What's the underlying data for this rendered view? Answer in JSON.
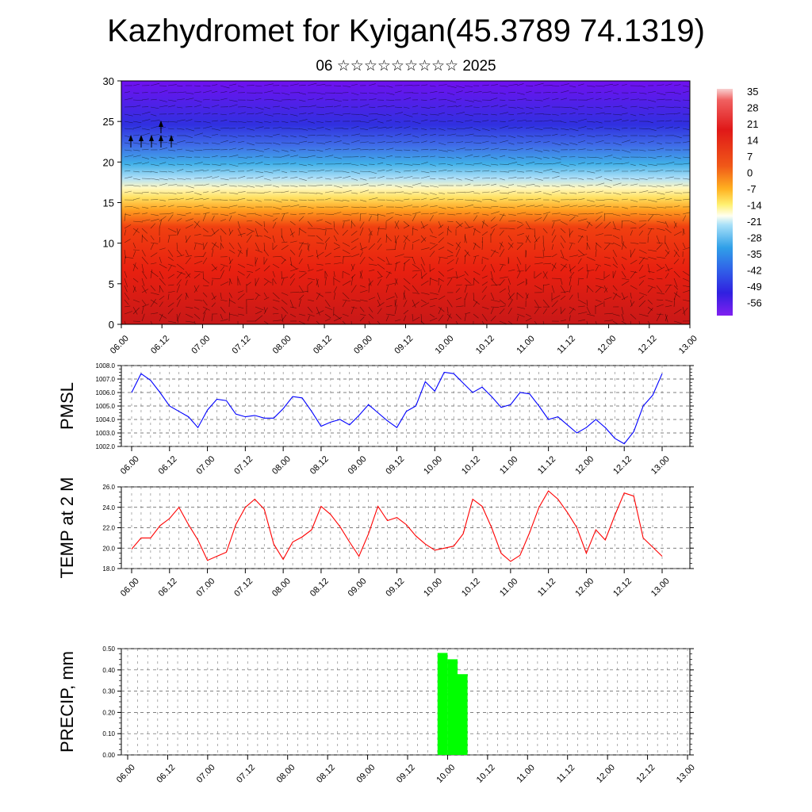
{
  "title": "Kazhydromet for Kyigan(45.3789 74.1319)",
  "subtitle": "06 ☆☆☆☆☆☆☆☆☆ 2025",
  "x_tick_labels": [
    "06.00",
    "06.12",
    "07.00",
    "07.12",
    "08.00",
    "08.12",
    "09.00",
    "09.12",
    "10.00",
    "10.12",
    "11.00",
    "11.12",
    "12.00",
    "12.12",
    "13.00"
  ],
  "chart_data": [
    {
      "type": "heatmap",
      "title": "",
      "xlabel": "",
      "ylabel": "",
      "ylim": [
        0,
        30
      ],
      "y_ticks": [
        "0",
        "5",
        "10",
        "15",
        "20",
        "25",
        "30"
      ],
      "x": [
        "06.00",
        "06.12",
        "07.00",
        "07.12",
        "08.00",
        "08.12",
        "09.00",
        "09.12",
        "10.00",
        "10.12",
        "11.00",
        "11.12",
        "12.00",
        "12.12",
        "13.00"
      ],
      "colorbar_labels": [
        "35",
        "28",
        "21",
        "14",
        "7",
        "0",
        "-7",
        "-14",
        "-21",
        "-28",
        "-35",
        "-42",
        "-49",
        "-56"
      ],
      "colors": {
        "hot": "#e02010",
        "warm": "#ffe860",
        "cool": "#40b0e8",
        "cold": "#6010f0"
      },
      "wind_arrows": true
    },
    {
      "type": "line",
      "ylabel": "PMSL",
      "ylim": [
        1002.0,
        1008.0
      ],
      "y_ticks": [
        "1002.0",
        "1003.0",
        "1004.0",
        "1005.0",
        "1006.0",
        "1007.0",
        "1008.0"
      ],
      "x_step_hours": 3,
      "series": [
        {
          "color": "#0000ff",
          "values": [
            1006.0,
            1007.4,
            1006.9,
            1006.0,
            1005.0,
            1004.6,
            1004.2,
            1003.4,
            1004.7,
            1005.5,
            1005.4,
            1004.4,
            1004.2,
            1004.3,
            1004.1,
            1004.1,
            1004.8,
            1005.7,
            1005.6,
            1004.6,
            1003.5,
            1003.8,
            1004.0,
            1003.6,
            1004.3,
            1005.1,
            1004.5,
            1003.9,
            1003.4,
            1004.6,
            1005.0,
            1006.8,
            1006.1,
            1007.5,
            1007.4,
            1006.7,
            1006.0,
            1006.4,
            1005.7,
            1004.9,
            1005.1,
            1006.0,
            1005.9,
            1005.0,
            1004.0,
            1004.2,
            1003.6,
            1003.0,
            1003.4,
            1004.0,
            1003.4,
            1002.6,
            1002.2,
            1003.1,
            1005.0,
            1005.8,
            1007.4
          ]
        }
      ]
    },
    {
      "type": "line",
      "ylabel": "TEMP at 2 M",
      "ylim": [
        18.0,
        26.0
      ],
      "y_ticks": [
        "18.0",
        "20.0",
        "22.0",
        "24.0",
        "26.0"
      ],
      "x_step_hours": 3,
      "series": [
        {
          "color": "#ff0000",
          "values": [
            19.9,
            21.0,
            21.0,
            22.2,
            22.9,
            24.0,
            22.3,
            20.8,
            18.8,
            19.2,
            19.6,
            22.3,
            24.0,
            24.8,
            23.8,
            20.4,
            18.9,
            20.6,
            21.1,
            21.8,
            24.1,
            23.3,
            22.1,
            20.6,
            19.2,
            21.4,
            24.1,
            22.7,
            23.0,
            22.3,
            21.2,
            20.4,
            19.8,
            20.0,
            20.2,
            21.4,
            24.8,
            24.1,
            22.0,
            19.5,
            18.7,
            19.3,
            21.5,
            24.0,
            25.6,
            24.8,
            23.5,
            22.0,
            19.5,
            21.8,
            20.8,
            23.2,
            25.4,
            25.1,
            21.0,
            20.1,
            19.2
          ]
        }
      ]
    },
    {
      "type": "bar",
      "ylabel": "PRECIP, mm",
      "ylim": [
        0.0,
        0.5
      ],
      "y_ticks": [
        "0.00",
        "0.10",
        "0.20",
        "0.30",
        "0.40",
        "0.50"
      ],
      "bars": [
        {
          "x": "09.21",
          "value": 0.48
        },
        {
          "x": "10.00",
          "value": 0.45
        },
        {
          "x": "10.03",
          "value": 0.38
        }
      ],
      "color": "#00ff00"
    }
  ]
}
